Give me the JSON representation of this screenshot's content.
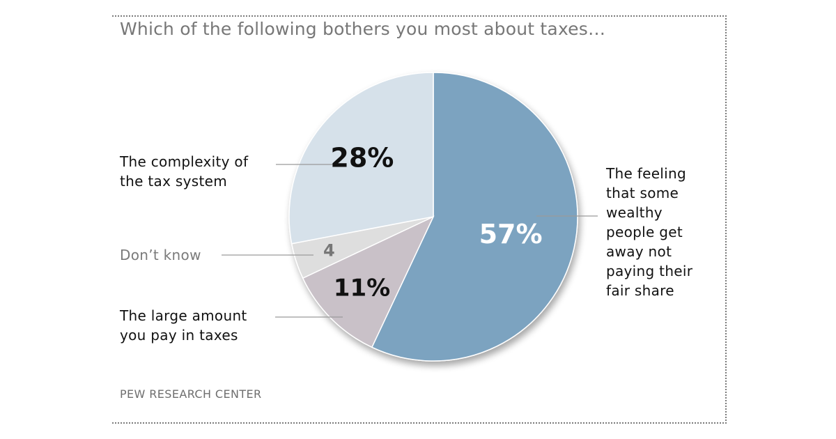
{
  "title": "Which of the following bothers you most about taxes…",
  "source": "PEW RESEARCH CENTER",
  "chart_data": {
    "type": "pie",
    "title": "Which of the following bothers you most about taxes…",
    "legend": "none",
    "slices": [
      {
        "label": "The feeling that some wealthy people get away not paying their fair share",
        "label_lines": "The feeling\nthat some\nwealthy\npeople get\naway not\npaying their\nfair share",
        "value": 57,
        "value_label": "57%",
        "color": "#7ca3c0",
        "value_color": "#ffffff"
      },
      {
        "label": "The large amount you pay in taxes",
        "label_lines": "The large amount\nyou pay in taxes",
        "value": 11,
        "value_label": "11%",
        "color": "#c9c1c8",
        "value_color": "#111111"
      },
      {
        "label": "Don't know",
        "label_lines": "Don’t know",
        "value": 4,
        "value_label": "4",
        "color": "#dedede",
        "value_color": "#777777"
      },
      {
        "label": "The complexity of the tax system",
        "label_lines": "The complexity of\nthe tax system",
        "value": 28,
        "value_label": "28%",
        "color": "#d6e1ea",
        "value_color": "#111111"
      }
    ]
  }
}
